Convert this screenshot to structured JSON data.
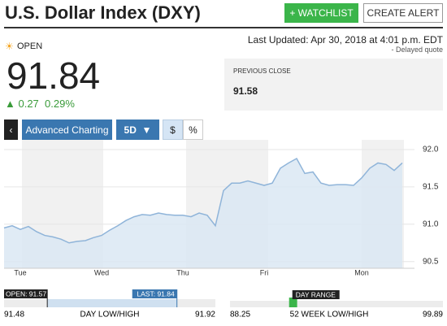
{
  "header": {
    "title": "U.S. Dollar Index (DXY)",
    "buttons": [
      "+ WATCHLIST",
      "CREATE ALERT"
    ]
  },
  "quote": {
    "status": "OPEN",
    "last_updated": "Last Updated: Apr 30, 2018 at 4:01 p.m. EDT",
    "delayed": "Delayed quote",
    "price": "91.84",
    "change": "0.27",
    "change_pct": "0.29%",
    "previous_close_label": "PREVIOUS CLOSE",
    "previous_close": "91.58"
  },
  "controls": {
    "advanced": "Advanced Charting",
    "range": "5D",
    "dollar": "$",
    "percent": "%"
  },
  "chart_data": {
    "type": "area",
    "color": "#8fb4d9",
    "categories": [
      null,
      null,
      "Tue",
      null,
      null,
      null,
      null,
      null,
      null,
      null,
      null,
      null,
      "Wed",
      null,
      null,
      null,
      null,
      null,
      null,
      null,
      null,
      null,
      "Thu",
      null,
      null,
      null,
      null,
      null,
      null,
      null,
      null,
      null,
      "Fri",
      null,
      null,
      null,
      null,
      null,
      null,
      null,
      null,
      null,
      null,
      null,
      "Mon",
      null,
      null,
      null,
      null,
      null
    ],
    "values": [
      90.95,
      90.98,
      90.93,
      90.97,
      90.9,
      90.85,
      90.83,
      90.8,
      90.75,
      90.77,
      90.78,
      90.82,
      90.85,
      90.92,
      90.98,
      91.05,
      91.1,
      91.13,
      91.12,
      91.15,
      91.13,
      91.12,
      91.12,
      91.1,
      91.15,
      91.12,
      90.98,
      91.45,
      91.55,
      91.55,
      91.58,
      91.55,
      91.52,
      91.55,
      91.75,
      91.82,
      91.88,
      91.68,
      91.7,
      91.55,
      91.52,
      91.53,
      91.53,
      91.52,
      91.62,
      91.75,
      91.82,
      91.8,
      91.72,
      91.82
    ],
    "ylim": [
      90.41,
      92.13
    ],
    "yticks": [
      {
        "value": 92,
        "label": "92.0"
      },
      91.5,
      {
        "value": 91,
        "label": "91.0"
      },
      90.5
    ],
    "grid": true
  },
  "ranges": {
    "day": {
      "label": "DAY LOW/HIGH",
      "low": 91.48,
      "high": 91.92,
      "open": {
        "value": 91.57,
        "label": "OPEN: 91.57"
      },
      "last": {
        "value": 91.84,
        "label": "LAST: 91.84"
      }
    },
    "week52": {
      "label": "52 WEEK LOW/HIGH",
      "low": 88.25,
      "high": 99.89,
      "marker_label": "DAY RANGE"
    }
  }
}
